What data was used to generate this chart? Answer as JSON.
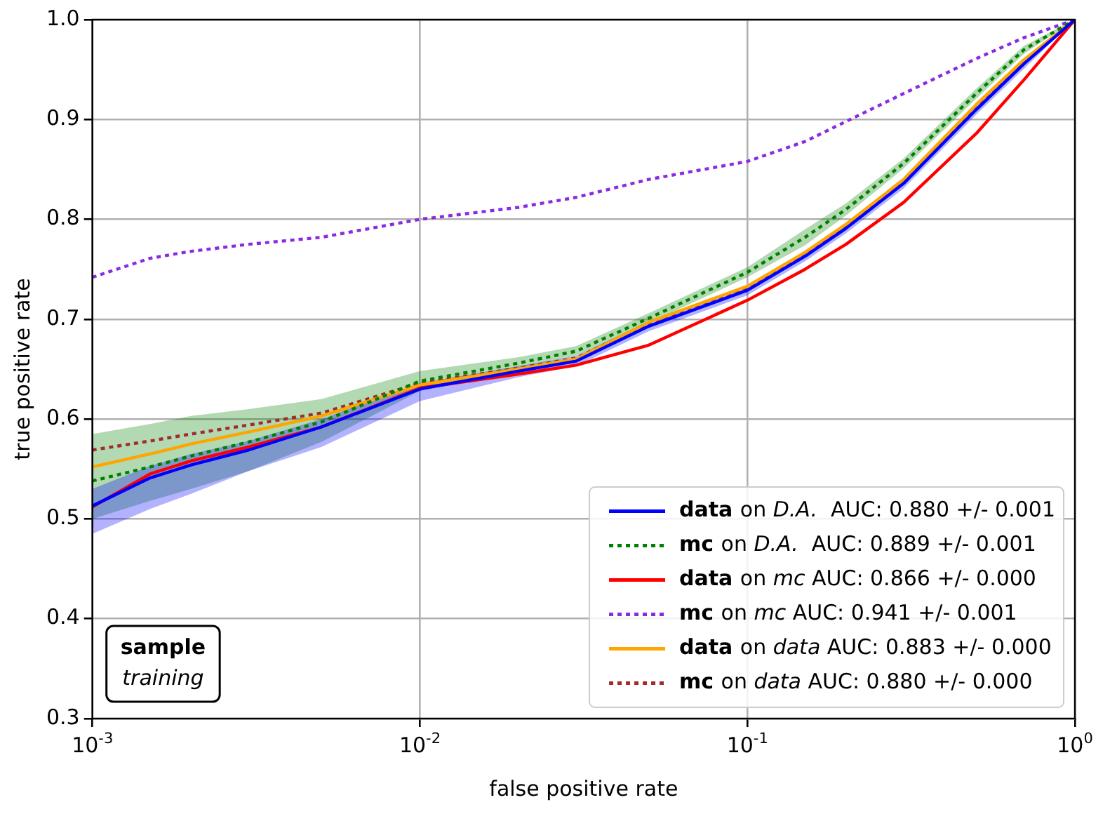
{
  "chart_data": {
    "type": "line",
    "xlabel": "false positive rate",
    "ylabel": "true positive rate",
    "x": [
      0.001,
      0.0015,
      0.002,
      0.003,
      0.005,
      0.01,
      0.02,
      0.03,
      0.05,
      0.1,
      0.15,
      0.2,
      0.3,
      0.5,
      0.7,
      1
    ],
    "series": [
      {
        "name": "data on D.A.  AUC: 0.880 +/- 0.001",
        "color": "#0000ff",
        "line_style": "solid",
        "values": [
          0.513,
          0.541,
          0.554,
          0.569,
          0.592,
          0.63,
          0.648,
          0.658,
          0.693,
          0.729,
          0.763,
          0.791,
          0.836,
          0.91,
          0.956,
          1.0
        ],
        "lower": [
          0.485,
          0.51,
          0.525,
          0.548,
          0.572,
          0.618,
          0.642,
          0.653,
          0.688,
          0.724,
          0.758,
          0.786,
          0.831,
          0.905,
          0.951,
          1.0
        ],
        "upper": [
          0.53,
          0.553,
          0.565,
          0.578,
          0.6,
          0.636,
          0.653,
          0.663,
          0.698,
          0.734,
          0.768,
          0.796,
          0.841,
          0.915,
          0.961,
          1.0
        ]
      },
      {
        "name": "mc on D.A.  AUC: 0.889 +/- 0.001",
        "color": "#008000",
        "line_style": "dotted",
        "values": [
          0.538,
          0.552,
          0.563,
          0.577,
          0.597,
          0.638,
          0.656,
          0.668,
          0.701,
          0.747,
          0.782,
          0.81,
          0.856,
          0.926,
          0.97,
          1.0
        ],
        "lower": [
          0.5,
          0.518,
          0.53,
          0.548,
          0.577,
          0.628,
          0.651,
          0.663,
          0.696,
          0.742,
          0.774,
          0.804,
          0.851,
          0.921,
          0.966,
          1.0
        ],
        "upper": [
          0.585,
          0.595,
          0.603,
          0.61,
          0.62,
          0.648,
          0.662,
          0.673,
          0.706,
          0.752,
          0.79,
          0.816,
          0.861,
          0.931,
          0.974,
          1.0
        ]
      },
      {
        "name": "data on mc AUC: 0.866 +/- 0.000",
        "color": "#ff0000",
        "line_style": "solid",
        "values": [
          0.512,
          0.545,
          0.558,
          0.572,
          0.592,
          0.631,
          0.645,
          0.654,
          0.674,
          0.719,
          0.75,
          0.775,
          0.817,
          0.886,
          0.94,
          1.0
        ]
      },
      {
        "name": "mc on mc AUC: 0.941 +/- 0.001",
        "color": "#8a2be2",
        "line_style": "dotted",
        "values": [
          0.742,
          0.761,
          0.768,
          0.775,
          0.782,
          0.8,
          0.812,
          0.822,
          0.84,
          0.858,
          0.878,
          0.898,
          0.926,
          0.961,
          0.982,
          1.0
        ]
      },
      {
        "name": "data on data AUC: 0.883 +/- 0.000",
        "color": "#ffa500",
        "line_style": "solid",
        "values": [
          0.552,
          0.565,
          0.575,
          0.587,
          0.603,
          0.634,
          0.65,
          0.66,
          0.697,
          0.733,
          0.767,
          0.795,
          0.84,
          0.915,
          0.96,
          1.0
        ]
      },
      {
        "name": "mc on data AUC: 0.880 +/- 0.000",
        "color": "#a52a2a",
        "line_style": "dotted",
        "values": [
          0.569,
          0.578,
          0.585,
          0.594,
          0.606,
          0.636,
          0.651,
          0.661,
          0.696,
          0.732,
          0.766,
          0.794,
          0.839,
          0.914,
          0.959,
          1.0
        ]
      }
    ],
    "log": "x",
    "xlim": [
      0.001,
      1
    ],
    "xticks": [
      {
        "value": 0.001,
        "label": "10$^{-3}$"
      },
      {
        "value": 0.01,
        "label": "10$^{-2}$"
      },
      {
        "value": 0.1,
        "label": "10$^{-1}$"
      },
      {
        "value": 1,
        "label": "10$^{0}$"
      }
    ],
    "ylim": [
      0.3,
      1.0
    ],
    "yticks": [
      0.3,
      0.4,
      0.5,
      0.6,
      0.7,
      0.8,
      0.9,
      {
        "value": 1.0,
        "label": "1.0"
      }
    ],
    "grid": true,
    "legend": "bottom right",
    "marker": "none",
    "annotations": [
      "sample",
      "training"
    ]
  }
}
